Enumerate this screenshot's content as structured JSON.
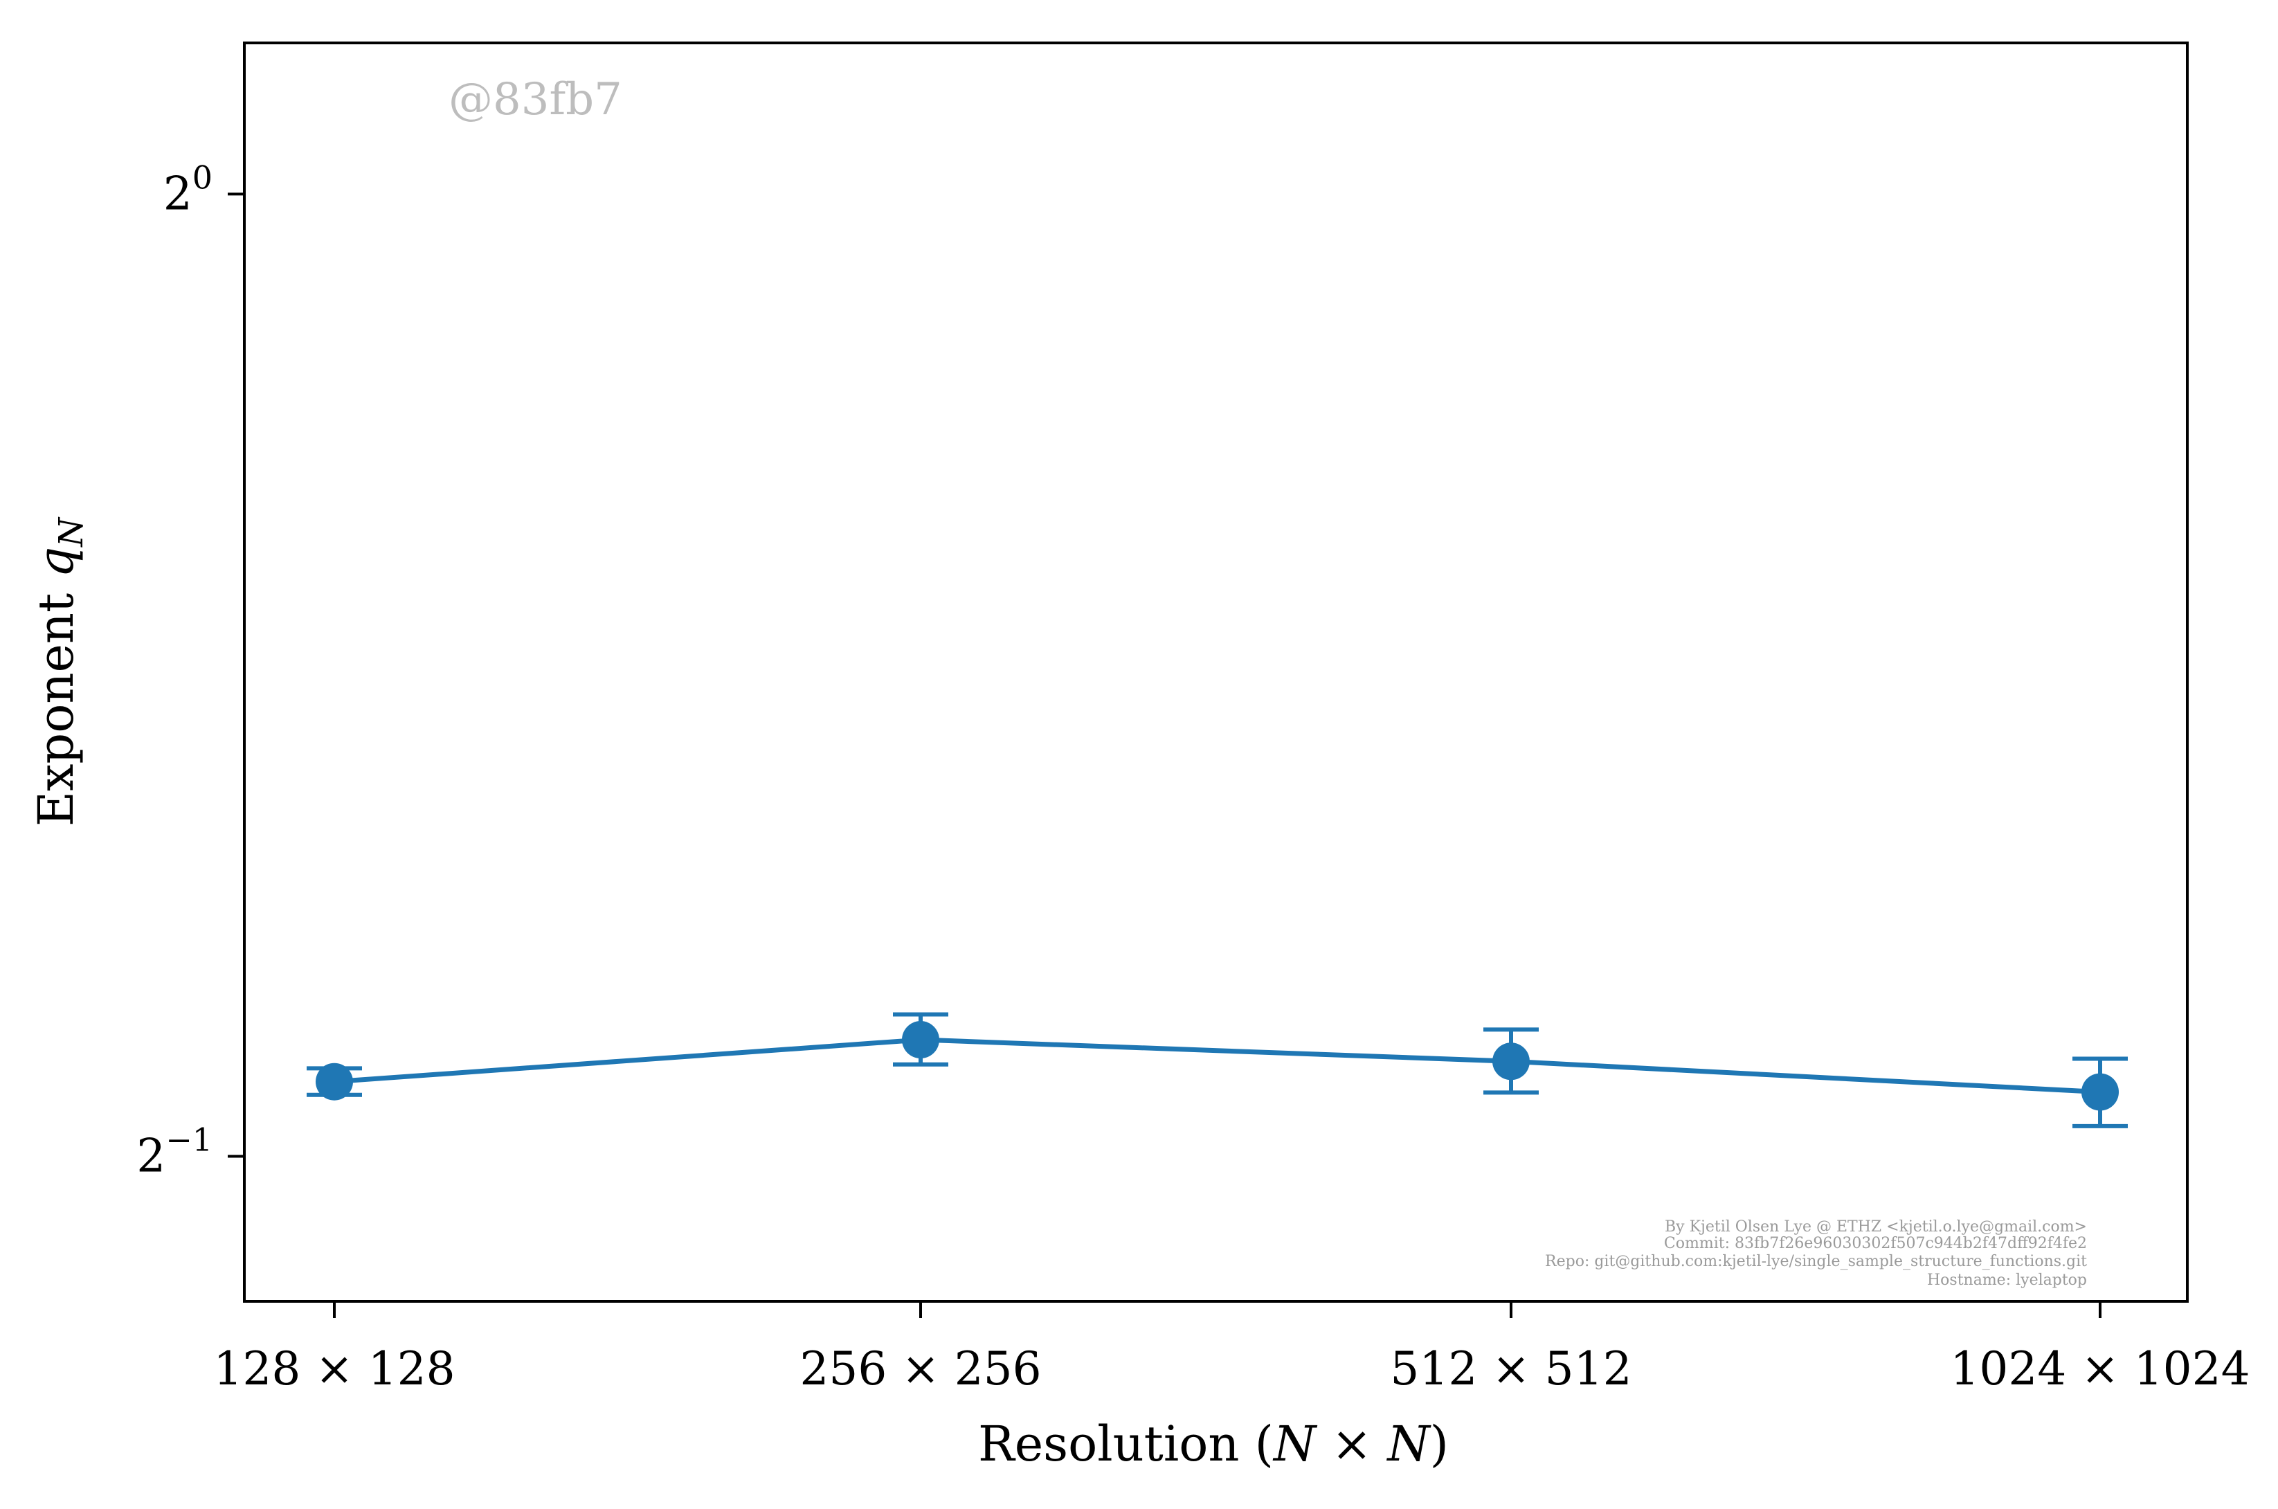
{
  "chart_data": {
    "type": "line",
    "xlabel": "Resolution (N × N)",
    "ylabel": "Exponent q_N",
    "ylabel_main": "Exponent ",
    "ylabel_var": "q",
    "ylabel_sub": "N",
    "xlabel_pre": "Resolution (",
    "xlabel_var1": "N",
    "xlabel_times": " × ",
    "xlabel_var2": "N",
    "xlabel_post": ")",
    "y_scale": "log2",
    "ylim": [
      0.4504,
      1.115
    ],
    "grid": false,
    "categories": [
      "128 × 128",
      "256 × 256",
      "512 × 512",
      "1024 × 1024"
    ],
    "series": [
      {
        "values": [
          0.5276,
          0.5438,
          0.5354,
          0.5237
        ],
        "err_low": [
          0.5226,
          0.5342,
          0.5235,
          0.511
        ],
        "err_high": [
          0.5327,
          0.5538,
          0.5478,
          0.5364
        ],
        "color": "#1f77b4"
      }
    ],
    "y_ticks": [
      {
        "value": 1.0,
        "base": "2",
        "exp": "0"
      },
      {
        "value": 0.5,
        "base": "2",
        "exp": "−1"
      }
    ],
    "watermark": "@83fb7",
    "credits": [
      "By Kjetil Olsen Lye @ ETHZ <kjetil.o.lye@gmail.com>",
      "Commit: 83fb7f26e96030302f507c944b2f47dff92f4fe2",
      "Repo: git@github.com:kjetil-lye/single_sample_structure_functions.git",
      "Hostname: lyelaptop"
    ]
  }
}
